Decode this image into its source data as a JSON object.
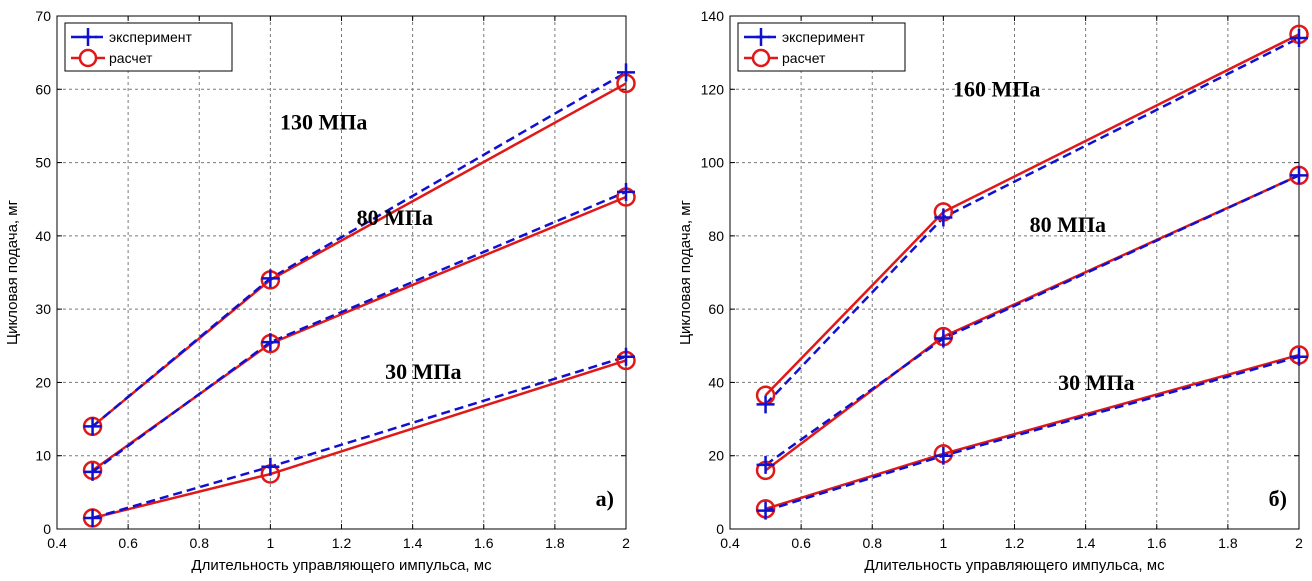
{
  "chart_data": [
    {
      "type": "line",
      "xlabel": "Длительность управляющего импульса, мс",
      "ylabel": "Цикловая подача, мг",
      "xlim": [
        0.4,
        2
      ],
      "ylim": [
        0,
        70
      ],
      "xticks": [
        0.4,
        0.6,
        0.8,
        1,
        1.2,
        1.4,
        1.6,
        1.8,
        2
      ],
      "xtick_labels": [
        "0.4",
        "0.6",
        "0.8",
        "1",
        "1.2",
        "1.4",
        "1.6",
        "1.8",
        "2"
      ],
      "yticks": [
        0,
        10,
        20,
        30,
        40,
        50,
        60,
        70
      ],
      "ytick_labels": [
        "0",
        "10",
        "20",
        "30",
        "40",
        "50",
        "60",
        "70"
      ],
      "grid": true,
      "legend": {
        "position": "top-left",
        "entries": [
          {
            "label": "эксперимент",
            "color": "#1010d0",
            "style": "dashed",
            "marker": "plus"
          },
          {
            "label": "расчет",
            "color": "#e01818",
            "style": "solid",
            "marker": "circle"
          }
        ]
      },
      "panel_label": "а)",
      "annotations": [
        {
          "text": "130 МПа",
          "x": 1.15,
          "y": 54.5
        },
        {
          "text": "80 МПа",
          "x": 1.35,
          "y": 41.5
        },
        {
          "text": "30 МПа",
          "x": 1.43,
          "y": 20.5
        }
      ],
      "x": [
        0.5,
        1,
        2
      ],
      "series": [
        {
          "group": "130 МПа",
          "kind": "эксперимент",
          "values": [
            14,
            34.2,
            62.3
          ]
        },
        {
          "group": "130 МПа",
          "kind": "расчет",
          "values": [
            14,
            34,
            60.8
          ]
        },
        {
          "group": "80 МПа",
          "kind": "эксперимент",
          "values": [
            7.8,
            25.5,
            46
          ]
        },
        {
          "group": "80 МПа",
          "kind": "расчет",
          "values": [
            8,
            25.3,
            45.3
          ]
        },
        {
          "group": "30 МПа",
          "kind": "эксперимент",
          "values": [
            1.5,
            8.5,
            23.5
          ]
        },
        {
          "group": "30 МПа",
          "kind": "расчет",
          "values": [
            1.5,
            7.5,
            23
          ]
        }
      ]
    },
    {
      "type": "line",
      "xlabel": "Длительность управляющего импульса, мс",
      "ylabel": "Цикловая подача, мг",
      "xlim": [
        0.4,
        2
      ],
      "ylim": [
        0,
        140
      ],
      "xticks": [
        0.4,
        0.6,
        0.8,
        1,
        1.2,
        1.4,
        1.6,
        1.8,
        2
      ],
      "xtick_labels": [
        "0.4",
        "0.6",
        "0.8",
        "1",
        "1.2",
        "1.4",
        "1.6",
        "1.8",
        "2"
      ],
      "yticks": [
        0,
        20,
        40,
        60,
        80,
        100,
        120,
        140
      ],
      "ytick_labels": [
        "0",
        "20",
        "40",
        "60",
        "80",
        "100",
        "120",
        "140"
      ],
      "grid": true,
      "legend": {
        "position": "top-left",
        "entries": [
          {
            "label": "эксперимент",
            "color": "#1010d0",
            "style": "dashed",
            "marker": "plus"
          },
          {
            "label": "расчет",
            "color": "#e01818",
            "style": "solid",
            "marker": "circle"
          }
        ]
      },
      "panel_label": "б)",
      "annotations": [
        {
          "text": "160 МПа",
          "x": 1.15,
          "y": 118
        },
        {
          "text": "80 МПа",
          "x": 1.35,
          "y": 81
        },
        {
          "text": "30 МПа",
          "x": 1.43,
          "y": 38
        }
      ],
      "x": [
        0.5,
        1,
        2
      ],
      "series": [
        {
          "group": "160 МПа",
          "kind": "эксперимент",
          "values": [
            34,
            85,
            134
          ]
        },
        {
          "group": "160 МПа",
          "kind": "расчет",
          "values": [
            36.5,
            86.5,
            135
          ]
        },
        {
          "group": "80 МПа",
          "kind": "эксперимент",
          "values": [
            17.5,
            52,
            96.5
          ]
        },
        {
          "group": "80 МПа",
          "kind": "расчет",
          "values": [
            16,
            52.5,
            96.5
          ]
        },
        {
          "group": "30 МПа",
          "kind": "эксперимент",
          "values": [
            5,
            20,
            47
          ]
        },
        {
          "group": "30 МПа",
          "kind": "расчет",
          "values": [
            5.5,
            20.5,
            47.5
          ]
        }
      ]
    }
  ]
}
